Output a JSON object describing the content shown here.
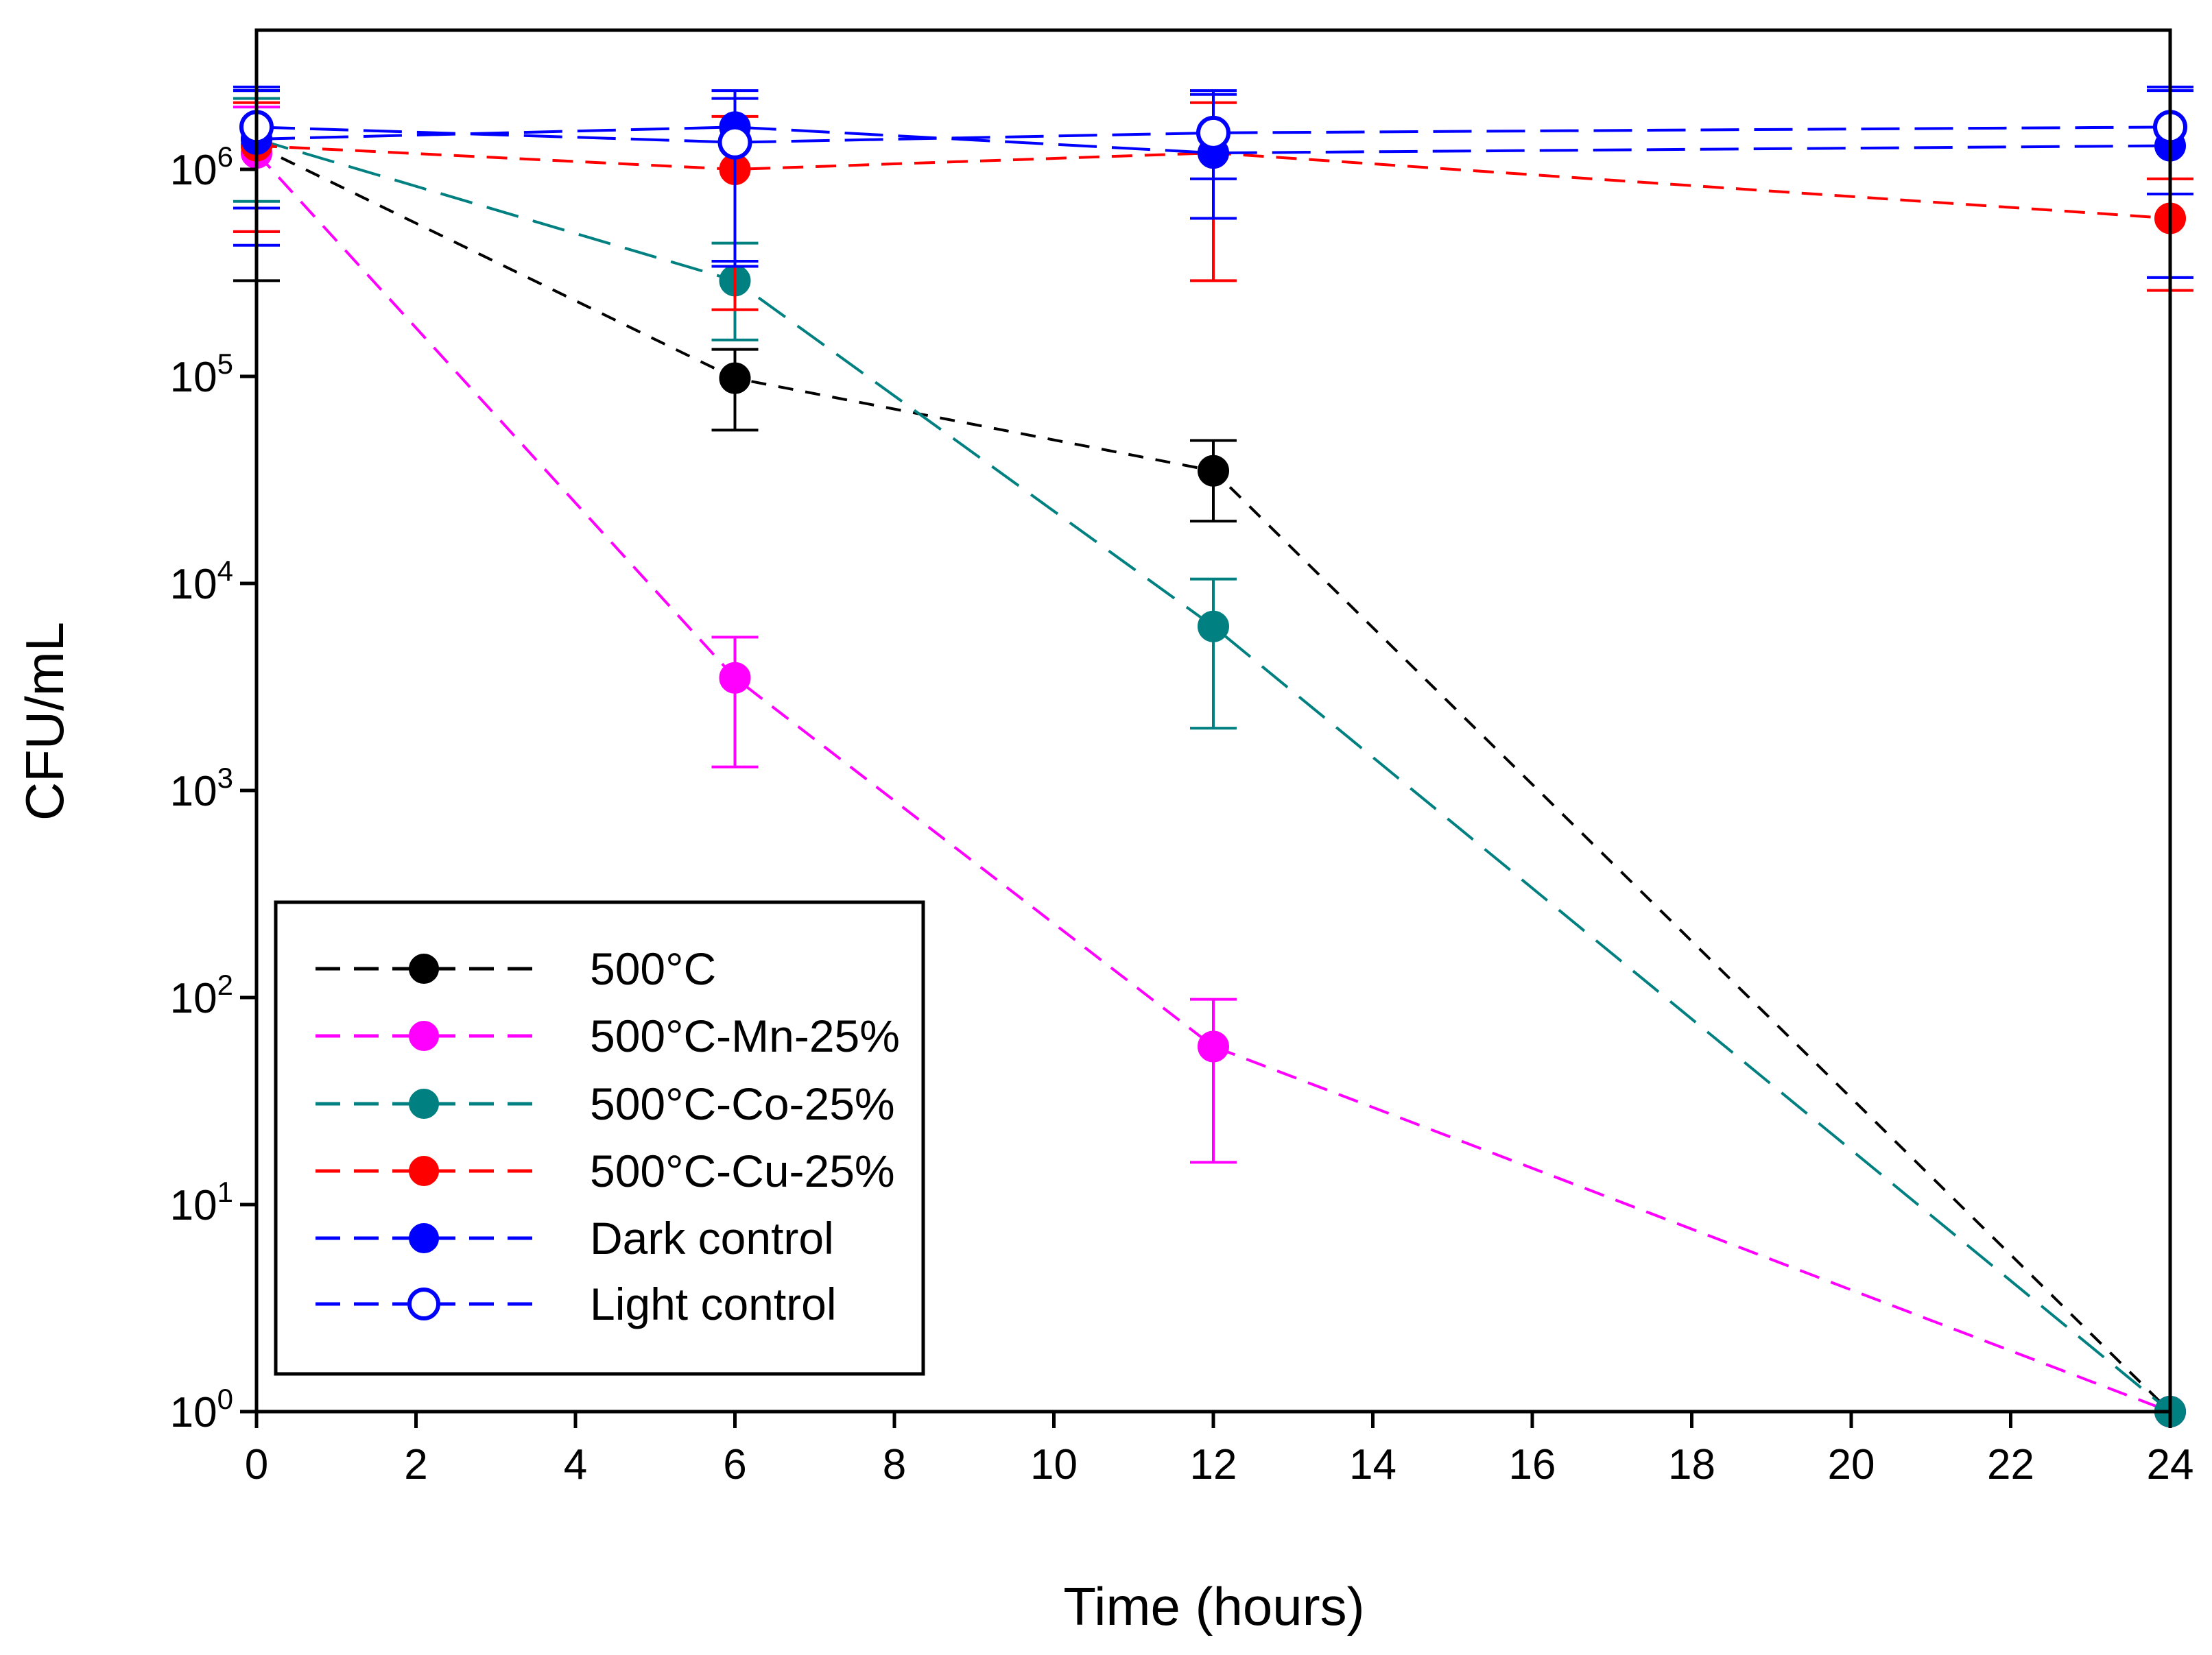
{
  "chart_data": {
    "type": "line",
    "title": "",
    "xlabel": "Time (hours)",
    "ylabel": "CFU/mL",
    "xlim": [
      0,
      24
    ],
    "ylim": [
      1,
      3000000
    ],
    "yscale": "log",
    "grid": false,
    "legend_position": "bottom-left",
    "xticks": [
      "0",
      "2",
      "4",
      "6",
      "8",
      "10",
      "12",
      "14",
      "16",
      "18",
      "20",
      "22",
      "24"
    ],
    "yticks": [
      {
        "base": "10",
        "exp": "0"
      },
      {
        "base": "10",
        "exp": "1"
      },
      {
        "base": "10",
        "exp": "2"
      },
      {
        "base": "10",
        "exp": "3"
      },
      {
        "base": "10",
        "exp": "4"
      },
      {
        "base": "10",
        "exp": "5"
      },
      {
        "base": "10",
        "exp": "6"
      }
    ],
    "series": [
      {
        "name": "500°C",
        "color": "#000000",
        "marker": "filled",
        "x": [
          0,
          6,
          12,
          24
        ],
        "values": [
          1300000,
          98000,
          35000,
          1
        ],
        "err_low": [
          290000,
          55000,
          20000,
          null
        ],
        "err_high": [
          2400000,
          135000,
          49000,
          null
        ]
      },
      {
        "name": "500°C-Mn-25%",
        "color": "#ff00ff",
        "marker": "filled",
        "x": [
          0,
          6,
          12,
          24
        ],
        "values": [
          1200000,
          3500,
          58,
          1
        ],
        "err_low": [
          500000,
          1300,
          16,
          null
        ],
        "err_high": [
          2000000,
          5500,
          98,
          null
        ]
      },
      {
        "name": "500°C-Co-25%",
        "color": "#008080",
        "marker": "filled",
        "x": [
          0,
          6,
          12,
          24
        ],
        "values": [
          1400000,
          290000,
          6200,
          1
        ],
        "err_low": [
          700000,
          150000,
          2000,
          null
        ],
        "err_high": [
          2200000,
          440000,
          10500,
          null
        ]
      },
      {
        "name": "500°C-Cu-25%",
        "color": "#ff0000",
        "marker": "filled",
        "x": [
          0,
          6,
          12,
          24
        ],
        "values": [
          1300000,
          1000000,
          1200000,
          580000
        ],
        "err_low": [
          500000,
          210000,
          290000,
          260000
        ],
        "err_high": [
          2100000,
          1800000,
          2100000,
          900000
        ]
      },
      {
        "name": "Dark control",
        "color": "#0000ff",
        "marker": "filled",
        "x": [
          0,
          6,
          12,
          24
        ],
        "values": [
          1400000,
          1600000,
          1200000,
          1300000
        ],
        "err_low": [
          430000,
          340000,
          580000,
          300000
        ],
        "err_high": [
          2400000,
          2400000,
          2300000,
          2400000
        ]
      },
      {
        "name": "Light control",
        "color": "#0000ff",
        "marker": "open",
        "x": [
          0,
          6,
          12,
          24
        ],
        "values": [
          1600000,
          1350000,
          1500000,
          1600000
        ],
        "err_low": [
          650000,
          360000,
          900000,
          760000
        ],
        "err_high": [
          2500000,
          2200000,
          2400000,
          2500000
        ]
      }
    ]
  }
}
